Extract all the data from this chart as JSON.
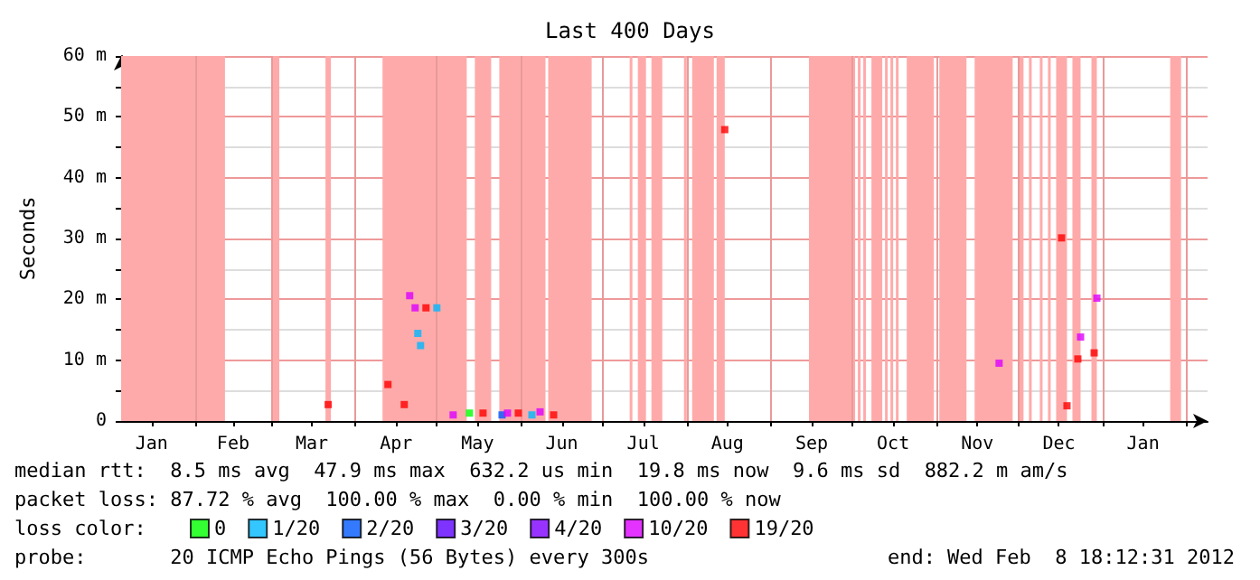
{
  "chart_data": {
    "type": "scatter",
    "title": "Last 400 Days",
    "ylabel": "Seconds",
    "legend_title": "loss color:",
    "legend": "bottom",
    "grid": true,
    "marker": "square",
    "xlim": [
      "2011-01-04T18:12",
      "2012-02-08T18:12"
    ],
    "xticks": [
      {
        "value": "2011-01-16",
        "label": "Jan"
      },
      {
        "value": "2011-02-01",
        "label": null
      },
      {
        "value": "2011-02-15",
        "label": "Feb"
      },
      {
        "value": "2011-03-01",
        "label": null
      },
      {
        "value": "2011-03-16",
        "label": "Mar"
      },
      {
        "value": "2011-04-01",
        "label": null
      },
      {
        "value": "2011-04-16",
        "label": "Apr"
      },
      {
        "value": "2011-05-01",
        "label": null
      },
      {
        "value": "2011-05-16",
        "label": "May"
      },
      {
        "value": "2011-06-01",
        "label": null
      },
      {
        "value": "2011-06-16",
        "label": "Jun"
      },
      {
        "value": "2011-07-01",
        "label": null
      },
      {
        "value": "2011-07-16",
        "label": "Jul"
      },
      {
        "value": "2011-08-01",
        "label": null
      },
      {
        "value": "2011-08-16",
        "label": "Aug"
      },
      {
        "value": "2011-09-01",
        "label": null
      },
      {
        "value": "2011-09-16",
        "label": "Sep"
      },
      {
        "value": "2011-10-01",
        "label": null
      },
      {
        "value": "2011-10-16",
        "label": "Oct"
      },
      {
        "value": "2011-11-01",
        "label": null
      },
      {
        "value": "2011-11-16",
        "label": "Nov"
      },
      {
        "value": "2011-12-01",
        "label": null
      },
      {
        "value": "2011-12-16",
        "label": "Dec"
      },
      {
        "value": "2012-01-01",
        "label": null
      },
      {
        "value": "2012-01-16",
        "label": "Jan"
      },
      {
        "value": "2012-02-01",
        "label": null
      }
    ],
    "ylim": [
      0,
      60
    ],
    "yticks": [
      0,
      {
        "value": 5,
        "label": null
      },
      {
        "value": 10,
        "label": "10 m"
      },
      {
        "value": 15,
        "label": null
      },
      {
        "value": 20,
        "label": "20 m"
      },
      {
        "value": 25,
        "label": null
      },
      {
        "value": 30,
        "label": "30 m"
      },
      {
        "value": 35,
        "label": null
      },
      {
        "value": 40,
        "label": "40 m"
      },
      {
        "value": 45,
        "label": null
      },
      {
        "value": 50,
        "label": "50 m"
      },
      {
        "value": 55,
        "label": null
      },
      {
        "value": 60,
        "label": "60 m"
      }
    ],
    "series": [
      {
        "name": "0",
        "color": "#00ff00",
        "x": [
          "2011-05-13"
        ],
        "values": [
          1.3
        ]
      },
      {
        "name": "1/20",
        "color": "#00b8ff",
        "x": [
          "2011-04-24",
          "2011-04-25",
          "2011-05-01",
          "2011-06-05"
        ],
        "values": [
          14.4,
          12.4,
          18.6,
          1.0
        ]
      },
      {
        "name": "2/20",
        "color": "#0059ff",
        "x": [
          "2011-05-25"
        ],
        "values": [
          1.0
        ]
      },
      {
        "name": "3/20",
        "color": "#5e00ff"
      },
      {
        "name": "4/20",
        "color": "#7e00ff"
      },
      {
        "name": "10/20",
        "color": "#dd00ff",
        "x": [
          "2011-04-21",
          "2011-04-23",
          "2011-05-07",
          "2011-05-27",
          "2011-06-08",
          "2011-11-24",
          "2011-12-24",
          "2011-12-30"
        ],
        "values": [
          20.6,
          18.6,
          1.0,
          1.3,
          1.5,
          9.5,
          13.8,
          20.2
        ]
      },
      {
        "name": "19/20",
        "color": "#ff0000",
        "x": [
          "2011-03-22",
          "2011-04-13",
          "2011-04-19",
          "2011-04-27",
          "2011-05-18",
          "2011-05-31",
          "2011-06-13",
          "2011-08-15",
          "2011-12-17",
          "2011-12-19",
          "2011-12-23",
          "2011-12-29"
        ],
        "values": [
          2.7,
          6.0,
          2.7,
          18.6,
          1.3,
          1.3,
          1.0,
          47.9,
          30.1,
          2.5,
          10.2,
          11.2
        ]
      }
    ],
    "bands": [
      {
        "axis": "x",
        "from": "2011-01-04T18:12",
        "to": "2011-02-12",
        "color": "#ffaaaa"
      },
      {
        "axis": "x",
        "from": "2011-03-01",
        "to": "2011-03-04",
        "color": "#ffaaaa"
      },
      {
        "axis": "x",
        "from": "2011-03-21",
        "to": "2011-03-23",
        "color": "#ffaaaa"
      },
      {
        "axis": "x",
        "from": "2011-04-11",
        "to": "2011-05-12",
        "color": "#ffaaaa"
      },
      {
        "axis": "x",
        "from": "2011-05-15",
        "to": "2011-05-21",
        "color": "#ffaaaa"
      },
      {
        "axis": "x",
        "from": "2011-05-24",
        "to": "2011-06-10",
        "color": "#ffaaaa"
      },
      {
        "axis": "x",
        "from": "2011-06-11",
        "to": "2011-06-27",
        "color": "#ffaaaa"
      },
      {
        "axis": "x",
        "from": "2011-07-11",
        "to": "2011-07-12",
        "color": "#ffaaaa"
      },
      {
        "axis": "x",
        "from": "2011-07-14",
        "to": "2011-07-17",
        "color": "#ffaaaa"
      },
      {
        "axis": "x",
        "from": "2011-07-19",
        "to": "2011-07-23",
        "color": "#ffaaaa"
      },
      {
        "axis": "x",
        "from": "2011-07-31",
        "to": "2011-08-01",
        "color": "#ffaaaa"
      },
      {
        "axis": "x",
        "from": "2011-08-03",
        "to": "2011-08-11",
        "color": "#ffaaaa"
      },
      {
        "axis": "x",
        "from": "2011-08-12",
        "to": "2011-08-15",
        "color": "#ffaaaa"
      },
      {
        "axis": "x",
        "from": "2011-09-15",
        "to": "2011-10-02",
        "color": "#ffaaaa"
      },
      {
        "axis": "x",
        "from": "2011-10-03",
        "to": "2011-10-04",
        "color": "#ffaaaa"
      },
      {
        "axis": "x",
        "from": "2011-10-05",
        "to": "2011-10-06",
        "color": "#ffaaaa"
      },
      {
        "axis": "x",
        "from": "2011-10-08",
        "to": "2011-10-12",
        "color": "#ffaaaa"
      },
      {
        "axis": "x",
        "from": "2011-10-13",
        "to": "2011-10-14",
        "color": "#ffaaaa"
      },
      {
        "axis": "x",
        "from": "2011-10-15",
        "to": "2011-10-16",
        "color": "#ffaaaa"
      },
      {
        "axis": "x",
        "from": "2011-10-17",
        "to": "2011-10-18",
        "color": "#ffaaaa"
      },
      {
        "axis": "x",
        "from": "2011-10-21",
        "to": "2011-10-31",
        "color": "#ffaaaa"
      },
      {
        "axis": "x",
        "from": "2011-11-02",
        "to": "2011-11-12",
        "color": "#ffaaaa"
      },
      {
        "axis": "x",
        "from": "2011-11-15",
        "to": "2011-11-29",
        "color": "#ffaaaa"
      },
      {
        "axis": "x",
        "from": "2011-12-01",
        "to": "2011-12-03",
        "color": "#ffaaaa"
      },
      {
        "axis": "x",
        "from": "2011-12-05",
        "to": "2011-12-06",
        "color": "#ffaaaa"
      },
      {
        "axis": "x",
        "from": "2011-12-09",
        "to": "2011-12-10",
        "color": "#ffaaaa"
      },
      {
        "axis": "x",
        "from": "2011-12-12",
        "to": "2011-12-13",
        "color": "#ffaaaa"
      },
      {
        "axis": "x",
        "from": "2011-12-15",
        "to": "2011-12-19",
        "color": "#ffaaaa"
      },
      {
        "axis": "x",
        "from": "2011-12-21",
        "to": "2011-12-24",
        "color": "#ffaaaa"
      },
      {
        "axis": "x",
        "from": "2011-12-28",
        "to": "2011-12-30",
        "color": "#ffaaaa"
      },
      {
        "axis": "x",
        "from": "2012-01-26",
        "to": "2012-01-30",
        "color": "#ffaaaa"
      }
    ],
    "annotations": [
      "median rtt:  8.5 ms avg  47.9 ms max  632.2 us min  19.8 ms now  9.6 ms sd  882.2 m am/s",
      "packet loss: 87.72 % avg  100.00 % max  0.00 % min  100.00 % now",
      "probe:       20 ICMP Echo Pings (56 Bytes) every 300s",
      "end: Wed Feb  8 18:12:31 2012"
    ]
  }
}
